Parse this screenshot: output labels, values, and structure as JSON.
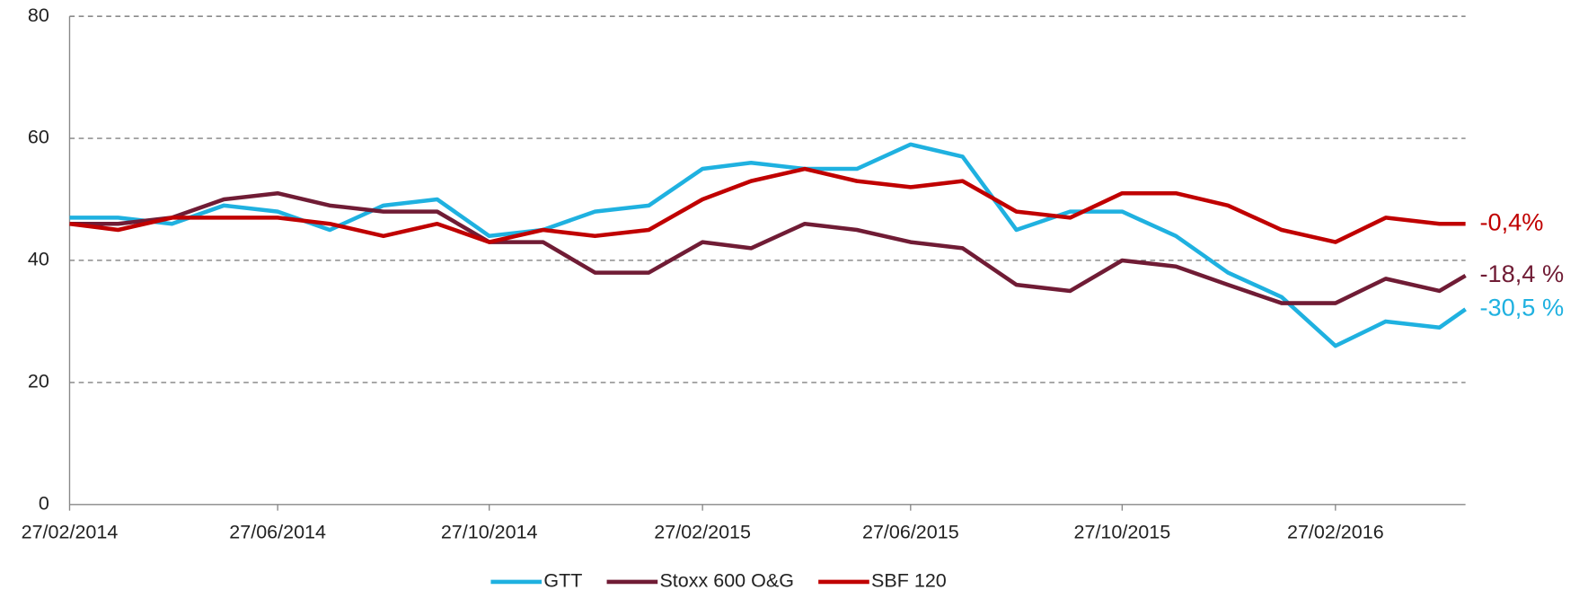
{
  "chart_data": {
    "type": "line",
    "x": [
      "27/02/2014",
      "27/03/2014",
      "27/04/2014",
      "27/05/2014",
      "27/06/2014",
      "27/07/2014",
      "27/08/2014",
      "27/09/2014",
      "27/10/2014",
      "27/11/2014",
      "27/12/2014",
      "27/01/2015",
      "27/02/2015",
      "27/03/2015",
      "27/04/2015",
      "27/05/2015",
      "27/06/2015",
      "27/07/2015",
      "27/08/2015",
      "27/09/2015",
      "27/10/2015",
      "27/11/2015",
      "27/12/2015",
      "27/01/2016",
      "27/02/2016",
      "27/03/2016",
      "27/04/2016",
      "12/05/2016"
    ],
    "series": [
      {
        "name": "GTT",
        "color": "#1fb1e0",
        "values": [
          47,
          47,
          46,
          49,
          48,
          45,
          49,
          50,
          44,
          45,
          48,
          49,
          55,
          56,
          55,
          55,
          59,
          57,
          45,
          48,
          48,
          44,
          38,
          34,
          26,
          30,
          29,
          32
        ]
      },
      {
        "name": "Stoxx 600 O&G",
        "color": "#701c35",
        "values": [
          46,
          46,
          47,
          50,
          51,
          49,
          48,
          48,
          43,
          43,
          38,
          38,
          43,
          42,
          46,
          45,
          43,
          42,
          36,
          35,
          40,
          39,
          36,
          33,
          33,
          37,
          35,
          37.5
        ]
      },
      {
        "name": "SBF 120",
        "color": "#c00000",
        "values": [
          46,
          45,
          47,
          47,
          47,
          46,
          44,
          46,
          43,
          45,
          44,
          45,
          50,
          53,
          55,
          53,
          52,
          53,
          48,
          47,
          51,
          51,
          49,
          45,
          43,
          47,
          46,
          46
        ]
      }
    ],
    "annotations": [
      {
        "text": "-0,4%",
        "series": 2
      },
      {
        "text": "-18,4 %",
        "series": 1
      },
      {
        "text": "-30,5 %",
        "series": 0
      }
    ],
    "xlim": [
      "27/02/2014",
      "12/05/2016"
    ],
    "xticks": [
      "27/02/2014",
      "27/06/2014",
      "27/10/2014",
      "27/02/2015",
      "27/06/2015",
      "27/10/2015",
      "27/02/2016"
    ],
    "ylim": [
      0,
      80
    ],
    "yticks": [
      0,
      20,
      40,
      60,
      80
    ],
    "grid": true,
    "legend": "bottom"
  }
}
